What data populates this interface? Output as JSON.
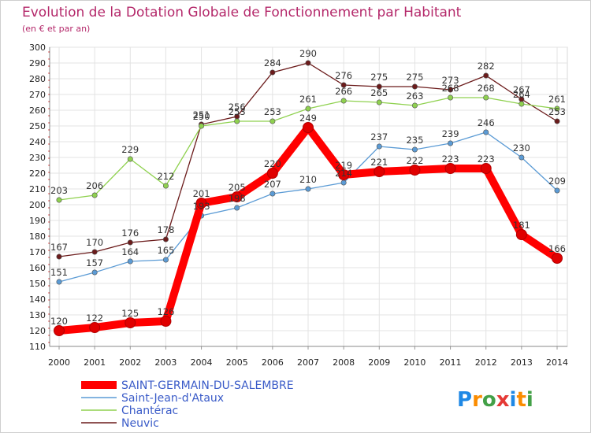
{
  "chart_data": {
    "type": "line",
    "title": "Evolution de la Dotation Globale de Fonctionnement par Habitant",
    "subtitle": "(en € et par an)",
    "x": [
      "2000",
      "2001",
      "2002",
      "2003",
      "2004",
      "2005",
      "2006",
      "2007",
      "2008",
      "2009",
      "2010",
      "2011",
      "2012",
      "2013",
      "2014"
    ],
    "ylim": [
      110,
      300
    ],
    "yticks": [
      110,
      120,
      130,
      140,
      150,
      160,
      170,
      180,
      190,
      200,
      210,
      220,
      230,
      240,
      250,
      260,
      270,
      280,
      290,
      300
    ],
    "grid": true,
    "series": [
      {
        "name": "SAINT-GERMAIN-DU-SALEMBRE",
        "color": "#ee0000",
        "values": [
          120,
          122,
          125,
          126,
          201,
          205,
          220,
          249,
          219,
          221,
          222,
          223,
          223,
          181,
          166
        ]
      },
      {
        "name": "Saint-Jean-d'Ataux",
        "color": "#5b9bd5",
        "values": [
          151,
          157,
          164,
          165,
          193,
          198,
          207,
          210,
          214,
          237,
          235,
          239,
          246,
          230,
          209
        ]
      },
      {
        "name": "Chantérac",
        "color": "#8fd14f",
        "values": [
          203,
          206,
          229,
          212,
          250,
          253,
          253,
          261,
          266,
          265,
          263,
          268,
          268,
          264,
          261
        ]
      },
      {
        "name": "Neuvic",
        "color": "#6b1b1b",
        "values": [
          167,
          170,
          176,
          178,
          251,
          256,
          284,
          290,
          276,
          275,
          275,
          273,
          282,
          267,
          253
        ]
      }
    ],
    "labels": {
      "SAINT-GERMAIN-DU-SALEMBRE": [
        "120",
        "122",
        "125",
        "126",
        "201",
        "205",
        "220",
        "249",
        "219",
        "221",
        "222",
        "223",
        "223",
        "181",
        "166"
      ],
      "Saint-Jean-d'Ataux": [
        "151",
        "157",
        "164",
        "165",
        "193",
        "198",
        "207",
        "210",
        "214",
        "237",
        "235",
        "239",
        "246",
        "230",
        "209"
      ],
      "Chantérac": [
        "203",
        "206",
        "229",
        "212",
        "250",
        "253",
        "253",
        "261",
        "266",
        "265",
        "263",
        "268",
        "268",
        "264",
        "261"
      ],
      "Neuvic": [
        "167",
        "170",
        "176",
        "178",
        "251",
        "256",
        "284",
        "290",
        "276",
        "275",
        "275",
        "273",
        "282",
        "267",
        "253"
      ]
    },
    "legend_position": "bottom-left"
  },
  "logo": {
    "text": "Proxiti",
    "letters": [
      "P",
      "r",
      "o",
      "x",
      "i",
      "t",
      "i"
    ],
    "colors": [
      "#1e88e5",
      "#fb8c00",
      "#43a047",
      "#e53935",
      "#1e88e5",
      "#fb8c00",
      "#43a047"
    ]
  }
}
